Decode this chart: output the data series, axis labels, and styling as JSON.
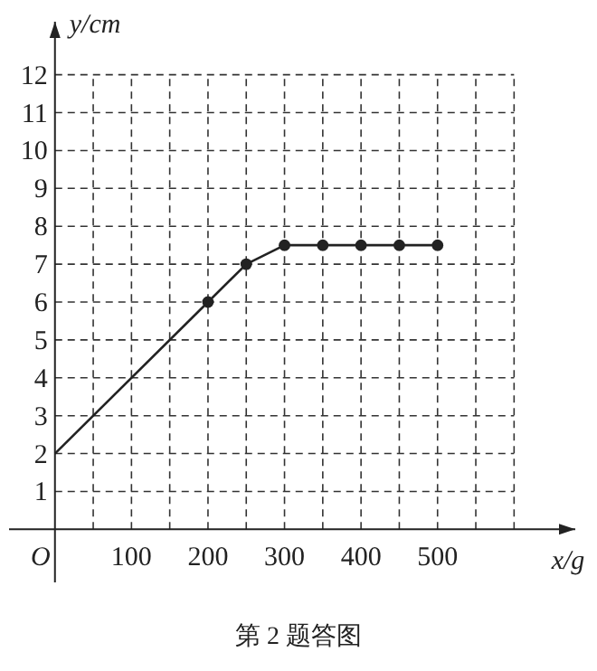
{
  "chart_data": {
    "type": "line",
    "xlabel": "x/g",
    "ylabel": "y/cm",
    "annotations": [
      "第 2 题答图"
    ],
    "xlim": [
      -60,
      680
    ],
    "ylim": [
      -1.4,
      13.4
    ],
    "xticks": [
      {
        "value": 0,
        "label": "O"
      },
      {
        "value": 50,
        "label": null
      },
      100,
      {
        "value": 150,
        "label": null
      },
      200,
      {
        "value": 250,
        "label": null
      },
      300,
      {
        "value": 350,
        "label": null
      },
      400,
      {
        "value": 450,
        "label": null
      },
      500,
      {
        "value": 550,
        "label": null
      },
      {
        "value": 600,
        "label": null
      }
    ],
    "yticks": [
      1,
      2,
      3,
      4,
      5,
      6,
      7,
      8,
      9,
      10,
      11,
      12
    ],
    "grid": true,
    "series": [
      {
        "color": "#222222",
        "x": [
          0,
          200
        ],
        "values": [
          2,
          6
        ]
      },
      {
        "color": "#222222",
        "marker": "circle",
        "x": [
          200,
          250,
          300,
          350,
          400,
          450,
          500
        ],
        "values": [
          6,
          7,
          7.5,
          7.5,
          7.5,
          7.5,
          7.5
        ]
      }
    ]
  }
}
